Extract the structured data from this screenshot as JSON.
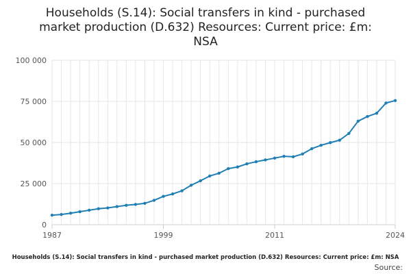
{
  "chart_data": {
    "type": "line",
    "title": "Households (S.14): Social transfers in kind - purchased market production (D.632) Resources: Current price: £m: NSA",
    "title_lines": [
      "Households (S.14): Social transfers in kind - purchased",
      "market production (D.632) Resources: Current price: £m:",
      "NSA"
    ],
    "xlabel": "",
    "ylabel": "",
    "xlim": [
      1987,
      2024
    ],
    "ylim": [
      0,
      100000
    ],
    "y_ticks": [
      0,
      25000,
      50000,
      75000,
      100000
    ],
    "y_tick_labels": [
      "0",
      "25 000",
      "50 000",
      "75 000",
      "100 000"
    ],
    "x_ticks": [
      1987,
      1999,
      2011,
      2024
    ],
    "x_tick_labels": [
      "1987",
      "1999",
      "2011",
      "2024"
    ],
    "grid": true,
    "series": [
      {
        "name": "Households (S.14): Social transfers in kind - purchased market production (D.632) Resources: Current price: £m: NSA",
        "color": "#1f7eb4",
        "x": [
          1987,
          1988,
          1989,
          1990,
          1991,
          1992,
          1993,
          1994,
          1995,
          1996,
          1997,
          1998,
          1999,
          2000,
          2001,
          2002,
          2003,
          2004,
          2005,
          2006,
          2007,
          2008,
          2009,
          2010,
          2011,
          2012,
          2013,
          2014,
          2015,
          2016,
          2017,
          2018,
          2019,
          2020,
          2021,
          2022,
          2023,
          2024
        ],
        "values": [
          5800,
          6200,
          7000,
          7900,
          8800,
          9700,
          10200,
          11000,
          11800,
          12300,
          13000,
          14800,
          17200,
          18700,
          20600,
          24000,
          26700,
          29600,
          31300,
          34100,
          35100,
          37000,
          38300,
          39400,
          40500,
          41600,
          41300,
          43000,
          46200,
          48300,
          49900,
          51400,
          55500,
          63000,
          65800,
          67800,
          74000,
          75500
        ]
      }
    ],
    "legend_text": "Households (S.14): Social transfers in kind - purchased market production (D.632) Resources: Current price: £m: NSA",
    "source_label": "Source:"
  }
}
